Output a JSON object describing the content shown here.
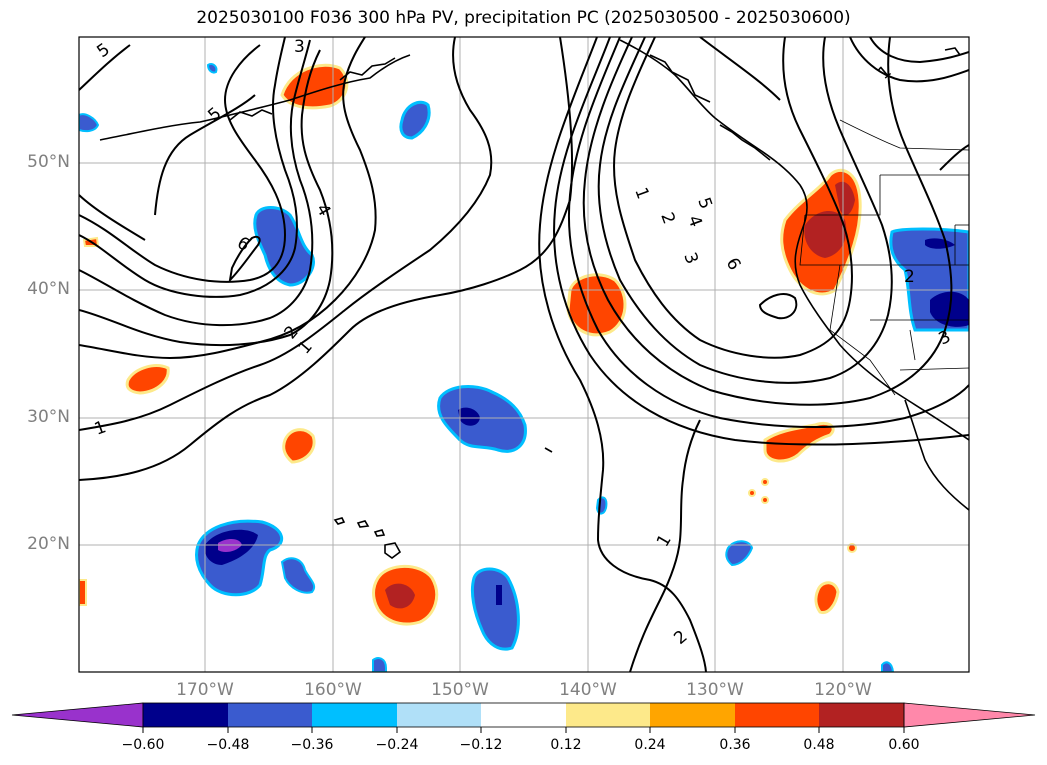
{
  "title": "2025030100 F036 300 hPa PV, precipitation PC (2025030500 - 2025030600)",
  "lon_labels": [
    "170°W",
    "160°W",
    "150°W",
    "140°W",
    "130°W",
    "120°W"
  ],
  "lat_labels": [
    "50°N",
    "40°N",
    "30°N",
    "20°N"
  ],
  "contour_labels": [
    "5",
    "3",
    "5",
    "4",
    "6",
    "2",
    "1",
    "1",
    "1",
    "2",
    "5",
    "4",
    "3",
    "6",
    "1",
    "2",
    "3",
    "1",
    "2"
  ],
  "colorbar": {
    "ticks": [
      "−0.60",
      "−0.48",
      "−0.36",
      "−0.24",
      "−0.12",
      "0.12",
      "0.24",
      "0.36",
      "0.48",
      "0.60"
    ],
    "colors": [
      "#9932cc",
      "#00008b",
      "#3a5bcf",
      "#00bfff",
      "#b0e0f8",
      "#ffffff",
      "#fde98a",
      "#ffa500",
      "#ff4500",
      "#b22222",
      "#ff88aa"
    ]
  }
}
